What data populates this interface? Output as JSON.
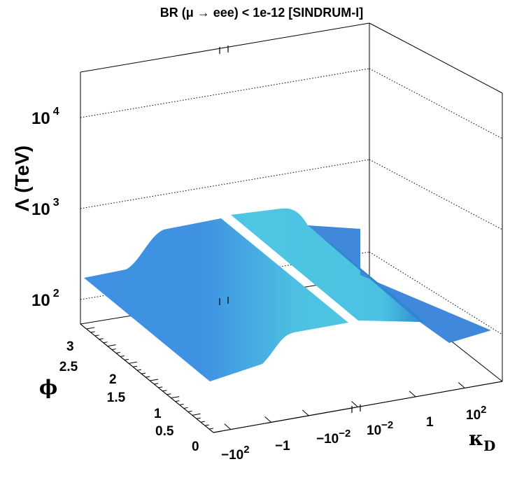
{
  "chart_data": {
    "type": "surface3d",
    "title": "BR (μ  → eee) < 1e-12  [SINDRUM-I]",
    "zlabel": "Λ (TeV)",
    "ylabel": "ϕ",
    "xlabel": "κ",
    "xlabel_sub": "D",
    "z_scale": "log",
    "z_ticks": [
      {
        "base": "10",
        "exp": "2"
      },
      {
        "base": "10",
        "exp": "3"
      },
      {
        "base": "10",
        "exp": "4"
      }
    ],
    "y_ticks": [
      "0",
      "0.5",
      "1",
      "1.5",
      "2",
      "2.5",
      "3"
    ],
    "x_ticks": [
      {
        "base": "−10",
        "exp": "2"
      },
      {
        "base": "−1",
        "exp": ""
      },
      {
        "base": "−10",
        "exp": "−2"
      },
      {
        "base": "10",
        "exp": "−2"
      },
      {
        "base": "1",
        "exp": ""
      },
      {
        "base": "10",
        "exp": "2"
      }
    ],
    "x_axis_break": "between −10^−2 and 10^−2",
    "surface_profile": {
      "description_units": "Λ in TeV along κ_D, constant along ϕ",
      "kappa_D": [
        "−10^2",
        "−1",
        "−10^−2",
        "10^−2",
        "1",
        "10^2"
      ],
      "Lambda_TeV": [
        100,
        350,
        600,
        600,
        110,
        100
      ]
    },
    "grid": true,
    "colors": {
      "surface_low": "#3f8fe0",
      "surface_high": "#4ec4e2",
      "surface_edge": "#2f7fc8"
    }
  }
}
